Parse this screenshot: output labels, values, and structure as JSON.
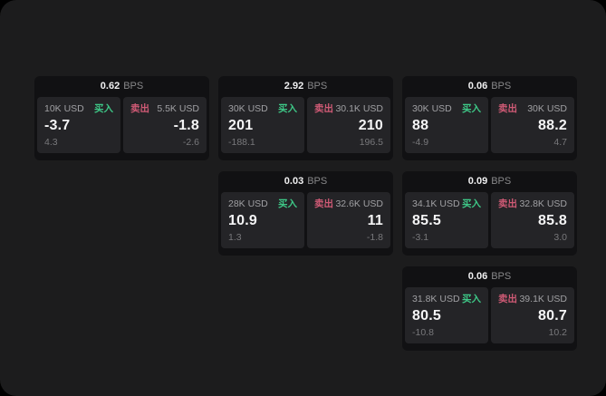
{
  "labels": {
    "buy": "买入",
    "sell": "卖出",
    "bps_unit": "BPS"
  },
  "colors": {
    "buy_accent": "#3ec887",
    "sell_accent": "#cf5a75",
    "page_bg": "#1c1c1d",
    "card_bg": "#111113",
    "panel_bg": "#242427"
  },
  "cards": [
    {
      "row": 1,
      "col": 1,
      "bps": "0.62",
      "buy": {
        "notional": "10K USD",
        "price": "-3.7",
        "delta": "4.3"
      },
      "sell": {
        "notional": "5.5K USD",
        "price": "-1.8",
        "delta": "-2.6"
      }
    },
    {
      "row": 1,
      "col": 2,
      "bps": "2.92",
      "buy": {
        "notional": "30K USD",
        "price": "201",
        "delta": "-188.1"
      },
      "sell": {
        "notional": "30.1K USD",
        "price": "210",
        "delta": "196.5"
      }
    },
    {
      "row": 1,
      "col": 3,
      "bps": "0.06",
      "buy": {
        "notional": "30K USD",
        "price": "88",
        "delta": "-4.9"
      },
      "sell": {
        "notional": "30K USD",
        "price": "88.2",
        "delta": "4.7"
      }
    },
    {
      "row": 2,
      "col": 2,
      "bps": "0.03",
      "buy": {
        "notional": "28K USD",
        "price": "10.9",
        "delta": "1.3"
      },
      "sell": {
        "notional": "32.6K USD",
        "price": "11",
        "delta": "-1.8"
      }
    },
    {
      "row": 2,
      "col": 3,
      "bps": "0.09",
      "buy": {
        "notional": "34.1K USD",
        "price": "85.5",
        "delta": "-3.1"
      },
      "sell": {
        "notional": "32.8K USD",
        "price": "85.8",
        "delta": "3.0"
      }
    },
    {
      "row": 3,
      "col": 3,
      "bps": "0.06",
      "buy": {
        "notional": "31.8K USD",
        "price": "80.5",
        "delta": "-10.8"
      },
      "sell": {
        "notional": "39.1K USD",
        "price": "80.7",
        "delta": "10.2"
      }
    }
  ]
}
